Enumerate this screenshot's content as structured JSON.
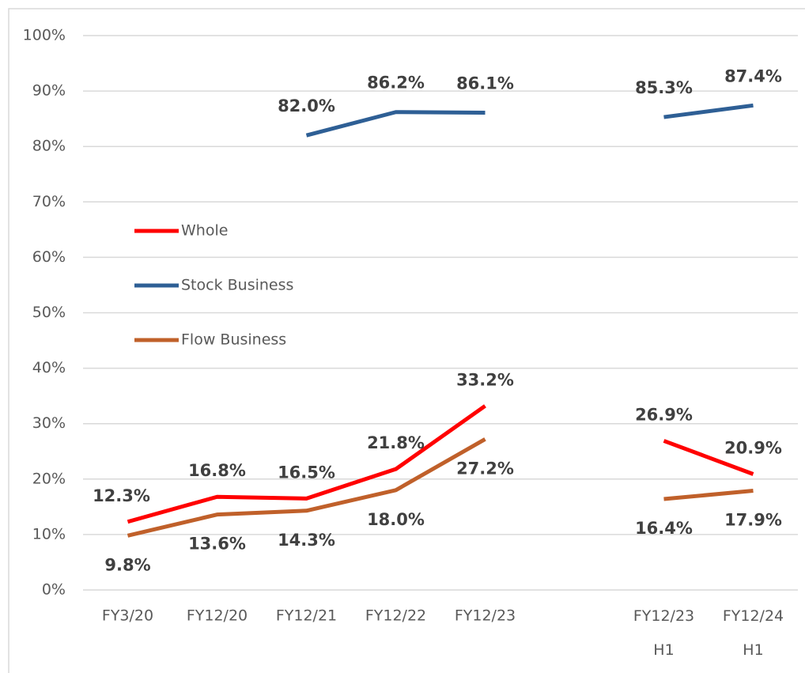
{
  "chart_data": {
    "type": "line",
    "categories": [
      "FY3/20",
      "FY12/20",
      "FY12/21",
      "FY12/22",
      "FY12/23",
      null,
      "FY12/23 H1",
      "FY12/24 H1"
    ],
    "series": [
      {
        "name": "Whole",
        "color": "#ff0000",
        "values": [
          12.3,
          16.8,
          16.5,
          21.8,
          33.2,
          null,
          26.9,
          20.9
        ],
        "value_labels": [
          "12.3%",
          "16.8%",
          "16.5%",
          "21.8%",
          "33.2%",
          null,
          "26.9%",
          "20.9%"
        ]
      },
      {
        "name": "Stock Business",
        "color": "#2e5f95",
        "values": [
          null,
          null,
          82.0,
          86.2,
          86.1,
          null,
          85.3,
          87.4
        ],
        "value_labels": [
          null,
          null,
          "82.0%",
          "86.2%",
          "86.1%",
          null,
          "85.3%",
          "87.4%"
        ]
      },
      {
        "name": "Flow Business",
        "color": "#c0602a",
        "values": [
          9.8,
          13.6,
          14.3,
          18.0,
          27.2,
          null,
          16.4,
          17.9
        ],
        "value_labels": [
          "9.8%",
          "13.6%",
          "14.3%",
          "18.0%",
          "27.2%",
          null,
          "16.4%",
          "17.9%"
        ]
      }
    ],
    "ylim": [
      0,
      100
    ],
    "yticks": [
      {
        "value": 0,
        "label": "0%"
      },
      {
        "value": 10,
        "label": "10%"
      },
      {
        "value": 20,
        "label": "20%"
      },
      {
        "value": 30,
        "label": "30%"
      },
      {
        "value": 40,
        "label": "40%"
      },
      {
        "value": 50,
        "label": "50%"
      },
      {
        "value": 60,
        "label": "60%"
      },
      {
        "value": 70,
        "label": "70%"
      },
      {
        "value": 80,
        "label": "80%"
      },
      {
        "value": 90,
        "label": "90%"
      },
      {
        "value": 100,
        "label": "100%"
      }
    ],
    "grid": true,
    "legend": "left"
  }
}
